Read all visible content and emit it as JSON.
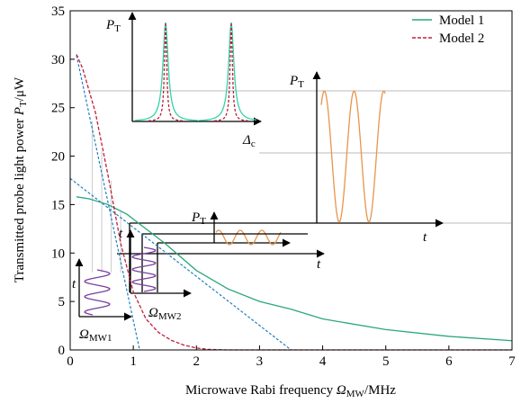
{
  "chart_data": {
    "type": "line",
    "x_label": {
      "text": "Microwave Rabi frequency ",
      "symbol": "Ω",
      "sub": "MW",
      "unit": "/MHz"
    },
    "y_label": {
      "text": "Transmitted probe light power ",
      "symbol": "P",
      "sub": "T",
      "unit": "/μW"
    },
    "xlim": [
      0,
      7
    ],
    "xticks": [
      0,
      1,
      2,
      3,
      4,
      5,
      6,
      7
    ],
    "ylim": [
      0,
      35
    ],
    "yticks": [
      0,
      5,
      10,
      15,
      20,
      25,
      30,
      35
    ],
    "legend": "top-right",
    "series": [
      {
        "name": "Model 1",
        "color": "#2aa77c",
        "dash": false,
        "x": [
          0.1,
          0.3,
          0.6,
          0.9,
          1.1,
          1.5,
          2,
          2.5,
          3,
          3.5,
          4,
          5,
          6,
          7
        ],
        "values": [
          15.8,
          15.6,
          15,
          14,
          13,
          11,
          8.2,
          6.3,
          5,
          4.2,
          3.2,
          2.1,
          1.4,
          0.95
        ]
      },
      {
        "name": "Model 2",
        "color": "#c0203a",
        "dash": true,
        "x": [
          0.1,
          0.2,
          0.4,
          0.6,
          0.8,
          1,
          1.2,
          1.4,
          1.6,
          1.8,
          2,
          2.2,
          2.5,
          7
        ],
        "values": [
          30.5,
          29,
          24.5,
          18,
          11,
          6,
          3.2,
          1.8,
          1,
          0.5,
          0.2,
          0.05,
          0,
          0
        ]
      }
    ],
    "tangent_lines": [
      {
        "color": "#1f7fc0",
        "x": [
          0.1,
          1.1
        ],
        "values": [
          30.4,
          0
        ]
      },
      {
        "color": "#1f7fc0",
        "x": [
          0,
          3.5
        ],
        "values": [
          17.7,
          0
        ]
      }
    ],
    "inset_labels": {
      "power": {
        "symbol": "P",
        "sub": "T"
      },
      "detuning": {
        "symbol": "Δ",
        "sub": "c"
      },
      "time": "t",
      "rabi1": {
        "symbol": "Ω",
        "sub": "MW1"
      },
      "rabi2": {
        "symbol": "Ω",
        "sub": "MW2"
      }
    }
  }
}
